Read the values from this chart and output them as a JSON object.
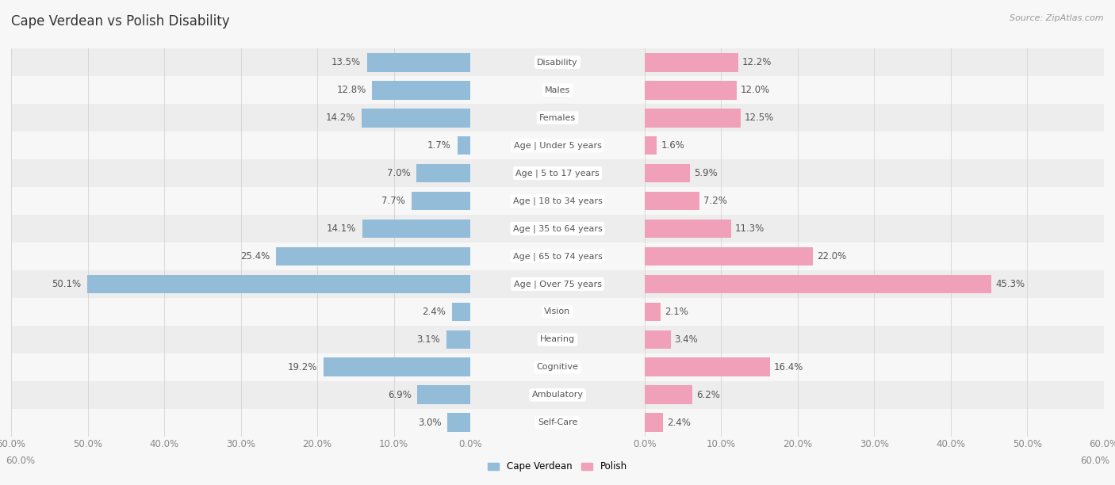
{
  "title": "Cape Verdean vs Polish Disability",
  "source": "Source: ZipAtlas.com",
  "categories": [
    "Disability",
    "Males",
    "Females",
    "Age | Under 5 years",
    "Age | 5 to 17 years",
    "Age | 18 to 34 years",
    "Age | 35 to 64 years",
    "Age | 65 to 74 years",
    "Age | Over 75 years",
    "Vision",
    "Hearing",
    "Cognitive",
    "Ambulatory",
    "Self-Care"
  ],
  "cape_verdean": [
    13.5,
    12.8,
    14.2,
    1.7,
    7.0,
    7.7,
    14.1,
    25.4,
    50.1,
    2.4,
    3.1,
    19.2,
    6.9,
    3.0
  ],
  "polish": [
    12.2,
    12.0,
    12.5,
    1.6,
    5.9,
    7.2,
    11.3,
    22.0,
    45.3,
    2.1,
    3.4,
    16.4,
    6.2,
    2.4
  ],
  "cape_verdean_color": "#93bcd8",
  "polish_color": "#f0a0b8",
  "row_color_odd": "#ededee",
  "row_color_even": "#f7f7f8",
  "fig_bg": "#f7f7f8",
  "axis_limit": 60.0,
  "title_fontsize": 12,
  "label_fontsize": 8.5,
  "cat_fontsize": 8,
  "tick_fontsize": 8.5
}
